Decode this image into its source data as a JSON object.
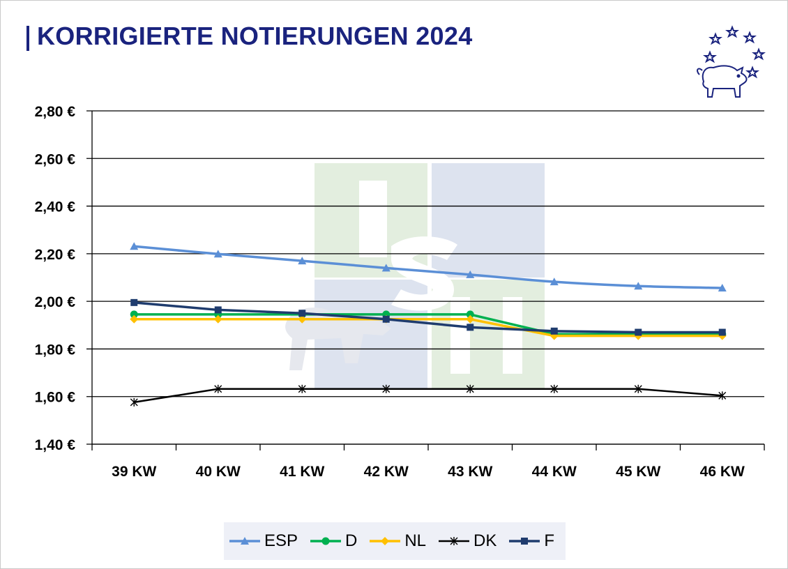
{
  "title": "KORRIGIERTE NOTIERUNGEN 2024",
  "logo_icon": "pig-with-stars-icon",
  "chart_data": {
    "type": "line",
    "title": "KORRIGIERTE NOTIERUNGEN 2024",
    "xlabel": "",
    "ylabel": "",
    "categories": [
      "39 KW",
      "40 KW",
      "41 KW",
      "42 KW",
      "43 KW",
      "44 KW",
      "45 KW",
      "46 KW"
    ],
    "ylim": [
      1.4,
      2.8
    ],
    "yticks": [
      1.4,
      1.6,
      1.8,
      2.0,
      2.2,
      2.4,
      2.6,
      2.8
    ],
    "ytick_labels": [
      "1,40 €",
      "1,60 €",
      "1,80 €",
      "2,00 €",
      "2,20 €",
      "2,40 €",
      "2,60 €",
      "2,80 €"
    ],
    "grid": true,
    "legend_position": "bottom",
    "series": [
      {
        "name": "ESP",
        "color": "#5b8fd6",
        "marker": "triangle",
        "smooth": true,
        "values": [
          2.231,
          2.199,
          2.17,
          2.14,
          2.112,
          2.082,
          2.064,
          2.056
        ]
      },
      {
        "name": "D",
        "color": "#00b050",
        "marker": "circle",
        "smooth": false,
        "values": [
          1.945,
          1.945,
          1.945,
          1.945,
          1.945,
          1.862,
          1.862,
          1.862
        ]
      },
      {
        "name": "NL",
        "color": "#ffc000",
        "marker": "diamond",
        "smooth": false,
        "values": [
          1.925,
          1.925,
          1.925,
          1.925,
          1.925,
          1.855,
          1.855,
          1.855
        ]
      },
      {
        "name": "DK",
        "color": "#000000",
        "marker": "star",
        "smooth": false,
        "values": [
          1.576,
          1.632,
          1.632,
          1.632,
          1.632,
          1.632,
          1.632,
          1.604
        ]
      },
      {
        "name": "F",
        "color": "#1f3c6e",
        "marker": "square",
        "smooth": false,
        "values": [
          1.995,
          1.964,
          1.95,
          1.925,
          1.891,
          1.875,
          1.87,
          1.87
        ]
      }
    ]
  }
}
